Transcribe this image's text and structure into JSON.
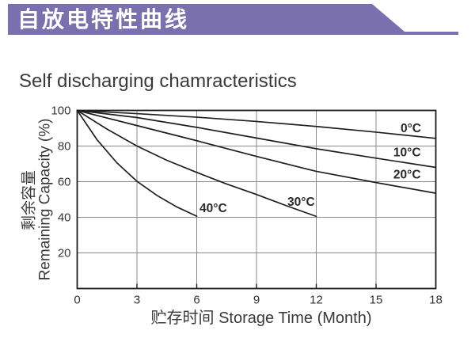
{
  "banner": {
    "text": "自放电特性曲线",
    "color": "#7b70ae",
    "text_color": "#ffffff"
  },
  "chart_data": {
    "type": "line",
    "title": "Self discharging chamracteristics",
    "xlabel": "贮存时间 Storage Time (Month)",
    "ylabel_cn": "剩余容量",
    "ylabel_en": "Remaining Capacity (%)",
    "xlim": [
      0,
      18
    ],
    "ylim": [
      0,
      100
    ],
    "xticks": [
      0,
      3,
      6,
      9,
      12,
      15,
      18
    ],
    "ytick_labels": [
      100,
      80,
      60,
      40,
      20
    ],
    "grid": true,
    "legend": "inline-labels",
    "line_color": "#1f1f1f",
    "grid_color": "#8a8a8a",
    "series": [
      {
        "name": "0°C",
        "x": [
          0,
          3,
          6,
          9,
          12,
          15,
          18
        ],
        "y": [
          100,
          98.2,
          96.2,
          93.8,
          91.0,
          87.8,
          84.3
        ],
        "label_x": 16.23,
        "label_y": 89.8
      },
      {
        "name": "10°C",
        "x": [
          0,
          3,
          6,
          9,
          12,
          15,
          18
        ],
        "y": [
          100,
          96.0,
          90.5,
          84.5,
          78.5,
          73.2,
          68.0
        ],
        "label_x": 15.87,
        "label_y": 76.2
      },
      {
        "name": "20°C",
        "x": [
          0,
          3,
          6,
          9,
          12,
          15,
          18
        ],
        "y": [
          100,
          91.5,
          83.0,
          74.2,
          65.8,
          59.5,
          53.5
        ],
        "label_x": 15.87,
        "label_y": 63.8
      },
      {
        "name": "30°C",
        "x": [
          0,
          1.5,
          3,
          4.5,
          6,
          7.5,
          9,
          10.5,
          12
        ],
        "y": [
          100,
          89.5,
          80.0,
          72.0,
          65.2,
          58.7,
          52.8,
          46.5,
          40.5
        ],
        "label_x": 10.55,
        "label_y": 48.4
      },
      {
        "name": "40°C",
        "x": [
          0,
          1,
          2,
          3,
          4,
          5,
          6
        ],
        "y": [
          100,
          83.5,
          70.5,
          60.2,
          52.3,
          45.8,
          40.6
        ],
        "label_x": 6.14,
        "label_y": 44.9
      }
    ]
  }
}
